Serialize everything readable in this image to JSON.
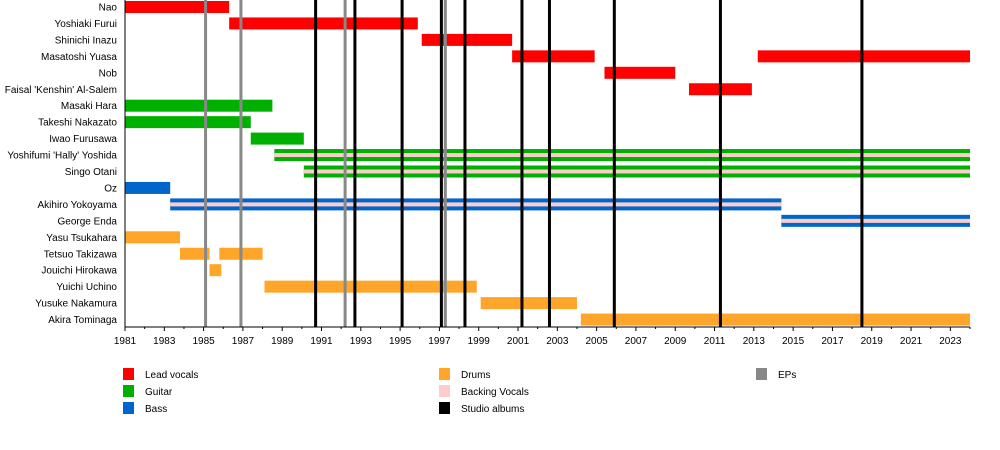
{
  "chart_data": {
    "type": "timeline",
    "xlim": [
      1981,
      2024
    ],
    "x_ticks": [
      1981,
      1983,
      1985,
      1987,
      1989,
      1991,
      1993,
      1995,
      1997,
      1999,
      2001,
      2003,
      2005,
      2007,
      2009,
      2011,
      2013,
      2015,
      2017,
      2019,
      2021,
      2023
    ],
    "colors": {
      "Lead vocals": "#ff0000",
      "Guitar": "#00b000",
      "Bass": "#0066cc",
      "Drums": "#ffa52a",
      "Backing Vocals": "#ffcccc",
      "Studio albums": "#000000",
      "EPs": "#888888"
    },
    "members": [
      {
        "name": "Nao",
        "periods": [
          {
            "role": "Lead vocals",
            "start": 1981,
            "end": 1986.3
          }
        ]
      },
      {
        "name": "Yoshiaki Furui",
        "periods": [
          {
            "role": "Lead vocals",
            "start": 1986.3,
            "end": 1995.9
          }
        ]
      },
      {
        "name": "Shinichi Inazu",
        "periods": [
          {
            "role": "Lead vocals",
            "start": 1996.1,
            "end": 2000.7
          }
        ]
      },
      {
        "name": "Masatoshi Yuasa",
        "periods": [
          {
            "role": "Lead vocals",
            "start": 2000.7,
            "end": 2004.9
          },
          {
            "role": "Lead vocals",
            "start": 2013.2,
            "end": 2024
          }
        ]
      },
      {
        "name": "Nob",
        "periods": [
          {
            "role": "Lead vocals",
            "start": 2005.4,
            "end": 2009.0
          }
        ]
      },
      {
        "name": "Faisal 'Kenshin' Al-Salem",
        "periods": [
          {
            "role": "Lead vocals",
            "start": 2009.7,
            "end": 2012.9
          }
        ]
      },
      {
        "name": "Masaki Hara",
        "periods": [
          {
            "role": "Guitar",
            "start": 1981,
            "end": 1988.5
          }
        ]
      },
      {
        "name": "Takeshi Nakazato",
        "periods": [
          {
            "role": "Guitar",
            "start": 1981,
            "end": 1987.4
          }
        ]
      },
      {
        "name": "Iwao Furusawa",
        "periods": [
          {
            "role": "Guitar",
            "start": 1987.4,
            "end": 1990.1
          }
        ]
      },
      {
        "name": "Yoshifumi 'Hally' Yoshida",
        "periods": [
          {
            "role": "Guitar",
            "start": 1988.6,
            "end": 2024,
            "secondary": "Backing Vocals"
          }
        ]
      },
      {
        "name": "Singo Otani",
        "periods": [
          {
            "role": "Guitar",
            "start": 1990.1,
            "end": 2024,
            "secondary": "Backing Vocals"
          }
        ]
      },
      {
        "name": "Oz",
        "periods": [
          {
            "role": "Bass",
            "start": 1981,
            "end": 1983.3
          }
        ]
      },
      {
        "name": "Akihiro Yokoyama",
        "periods": [
          {
            "role": "Bass",
            "start": 1983.3,
            "end": 2014.4,
            "secondary": "Backing Vocals"
          }
        ]
      },
      {
        "name": "George Enda",
        "periods": [
          {
            "role": "Bass",
            "start": 2014.4,
            "end": 2024,
            "secondary": "Backing Vocals"
          }
        ]
      },
      {
        "name": "Yasu Tsukahara",
        "periods": [
          {
            "role": "Drums",
            "start": 1981,
            "end": 1983.8
          }
        ]
      },
      {
        "name": "Tetsuo Takizawa",
        "periods": [
          {
            "role": "Drums",
            "start": 1983.8,
            "end": 1985.3
          },
          {
            "role": "Drums",
            "start": 1985.8,
            "end": 1988.0
          }
        ]
      },
      {
        "name": "Jouichi Hirokawa",
        "periods": [
          {
            "role": "Drums",
            "start": 1985.3,
            "end": 1985.9
          }
        ]
      },
      {
        "name": "Yuichi Uchino",
        "periods": [
          {
            "role": "Drums",
            "start": 1988.1,
            "end": 1998.9
          }
        ]
      },
      {
        "name": "Yusuke Nakamura",
        "periods": [
          {
            "role": "Drums",
            "start": 1999.1,
            "end": 2004.0
          }
        ]
      },
      {
        "name": "Akira Tominaga",
        "periods": [
          {
            "role": "Drums",
            "start": 2004.2,
            "end": 2024
          }
        ]
      }
    ],
    "studio_albums": [
      1990.7,
      1992.7,
      1995.1,
      1997.1,
      1998.3,
      2001.2,
      2002.6,
      2005.9,
      2011.3,
      2018.5
    ],
    "eps": [
      1985.1,
      1986.9,
      1992.2,
      1997.3
    ],
    "legend": [
      [
        "Lead vocals",
        "Guitar",
        "Bass"
      ],
      [
        "Drums",
        "Backing Vocals",
        "Studio albums"
      ],
      [
        "EPs"
      ]
    ]
  }
}
